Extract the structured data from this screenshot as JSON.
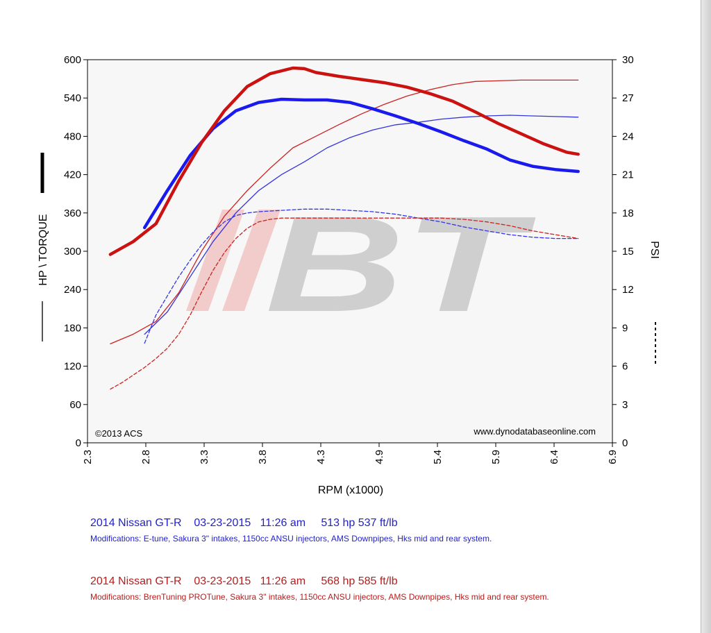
{
  "chart_data": {
    "type": "line",
    "xlabel": "RPM (x1000)",
    "ylabel": "HP \\ TORQUE",
    "y2label": "PSI",
    "xlim": [
      2.3,
      6.9
    ],
    "ylim": [
      0,
      600
    ],
    "y2lim": [
      0,
      30
    ],
    "x_ticks": [
      "2.3",
      "2.8",
      "3.3",
      "3.8",
      "4.3",
      "4.9",
      "5.4",
      "5.9",
      "6.4",
      "6.9"
    ],
    "y_ticks": [
      "0",
      "60",
      "120",
      "180",
      "240",
      "300",
      "360",
      "420",
      "480",
      "540",
      "600"
    ],
    "y2_ticks": [
      "0",
      "3",
      "6",
      "9",
      "12",
      "15",
      "18",
      "21",
      "24",
      "27",
      "30"
    ],
    "copyright": "©2013 ACS",
    "website": "www.dynodatabaseonline.com",
    "watermark": "//BT",
    "grid": false,
    "series": [
      {
        "run": "E-tune",
        "kind": "torque",
        "axis": "left",
        "color": "#1a1aee",
        "style": "thick",
        "x": [
          2.8,
          3.0,
          3.2,
          3.4,
          3.6,
          3.8,
          4.0,
          4.2,
          4.4,
          4.6,
          4.8,
          5.0,
          5.2,
          5.4,
          5.6,
          5.8,
          6.0,
          6.2,
          6.4,
          6.6
        ],
        "y": [
          337,
          395,
          450,
          492,
          520,
          533,
          538,
          537,
          537,
          533,
          523,
          512,
          500,
          487,
          473,
          460,
          443,
          433,
          428,
          425
        ]
      },
      {
        "run": "BrenTuning PROTune",
        "kind": "torque",
        "axis": "left",
        "color": "#cc1111",
        "style": "thick",
        "x": [
          2.5,
          2.7,
          2.9,
          3.1,
          3.3,
          3.5,
          3.7,
          3.9,
          4.1,
          4.2,
          4.3,
          4.5,
          4.7,
          4.9,
          5.1,
          5.3,
          5.5,
          5.7,
          5.9,
          6.1,
          6.3,
          6.5,
          6.6
        ],
        "y": [
          295,
          315,
          343,
          410,
          470,
          520,
          558,
          578,
          587,
          586,
          580,
          574,
          569,
          564,
          557,
          547,
          535,
          518,
          500,
          484,
          468,
          455,
          452
        ]
      },
      {
        "run": "E-tune",
        "kind": "hp",
        "axis": "left",
        "color": "#3333dd",
        "style": "thin",
        "x": [
          2.8,
          3.0,
          3.2,
          3.4,
          3.6,
          3.8,
          4.0,
          4.2,
          4.4,
          4.6,
          4.8,
          5.0,
          5.2,
          5.4,
          5.6,
          5.8,
          6.0,
          6.2,
          6.4,
          6.6
        ],
        "y": [
          170,
          205,
          260,
          315,
          360,
          395,
          420,
          440,
          462,
          478,
          490,
          498,
          502,
          507,
          510,
          512,
          513,
          512,
          511,
          510
        ]
      },
      {
        "run": "BrenTuning PROTune",
        "kind": "hp",
        "axis": "left",
        "color": "#cc2222",
        "style": "thin",
        "x": [
          2.5,
          2.7,
          2.9,
          3.1,
          3.3,
          3.5,
          3.7,
          3.9,
          4.1,
          4.3,
          4.5,
          4.7,
          4.9,
          5.1,
          5.3,
          5.5,
          5.7,
          5.9,
          6.1,
          6.3,
          6.5,
          6.6
        ],
        "y": [
          155,
          170,
          190,
          235,
          300,
          355,
          395,
          430,
          462,
          480,
          498,
          515,
          530,
          543,
          553,
          561,
          566,
          567,
          568,
          568,
          568,
          568
        ]
      },
      {
        "run": "E-tune",
        "kind": "boost",
        "axis": "right",
        "color": "#3333ee",
        "style": "dashed",
        "x": [
          2.8,
          2.9,
          3.0,
          3.1,
          3.2,
          3.3,
          3.4,
          3.5,
          3.6,
          3.7,
          3.8,
          4.0,
          4.2,
          4.4,
          4.6,
          4.8,
          5.0,
          5.2,
          5.4,
          5.6,
          5.8,
          6.0,
          6.2,
          6.4,
          6.6
        ],
        "y": [
          7.8,
          10.0,
          11.5,
          13.0,
          14.3,
          15.5,
          16.5,
          17.3,
          17.8,
          18.0,
          18.1,
          18.2,
          18.3,
          18.3,
          18.2,
          18.1,
          17.9,
          17.6,
          17.3,
          16.9,
          16.6,
          16.3,
          16.1,
          16.0,
          16.0
        ]
      },
      {
        "run": "BrenTuning PROTune",
        "kind": "boost",
        "axis": "right",
        "color": "#cc2222",
        "style": "dashed",
        "x": [
          2.5,
          2.6,
          2.7,
          2.8,
          2.9,
          3.0,
          3.1,
          3.2,
          3.3,
          3.4,
          3.5,
          3.6,
          3.7,
          3.8,
          3.9,
          4.0,
          4.2,
          4.4,
          4.6,
          4.8,
          5.0,
          5.2,
          5.4,
          5.6,
          5.8,
          6.0,
          6.2,
          6.4,
          6.6
        ],
        "y": [
          4.2,
          4.7,
          5.3,
          5.9,
          6.6,
          7.4,
          8.5,
          10.0,
          11.8,
          13.5,
          14.9,
          16.0,
          16.8,
          17.3,
          17.5,
          17.6,
          17.6,
          17.6,
          17.6,
          17.6,
          17.6,
          17.6,
          17.6,
          17.5,
          17.3,
          17.0,
          16.6,
          16.3,
          16.0
        ]
      }
    ]
  },
  "runs": [
    {
      "title": "2014 Nissan GT-R    03-23-2015   11:26 am     513 hp 537 ft/lb",
      "mods": "Modifications: E-tune, Sakura 3\" intakes, 1150cc ANSU injectors, AMS Downpipes, Hks mid and rear system.",
      "color": "#2222cc"
    },
    {
      "title": "2014 Nissan GT-R    03-23-2015   11:26 am     568 hp 585 ft/lb",
      "mods": "Modifications: BrenTuning PROTune, Sakura 3\" intakes, 1150cc ANSU injectors, AMS Downpipes, Hks mid and rear system.",
      "color": "#b81c1c"
    }
  ]
}
